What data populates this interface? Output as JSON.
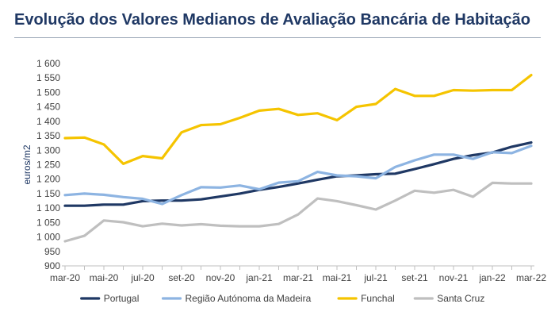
{
  "title": "Evolução dos Valores Medianos de Avaliação Bancária de Habitação",
  "chart_data": {
    "type": "line",
    "title": "Evolução dos Valores Medianos de Avaliação Bancária de Habitação",
    "xlabel": "",
    "ylabel": "euros/m2",
    "ylim": [
      900,
      1600
    ],
    "yticks": [
      900,
      950,
      1000,
      1050,
      1100,
      1150,
      1200,
      1250,
      1300,
      1350,
      1400,
      1450,
      1500,
      1550,
      1600
    ],
    "ytick_labels": [
      "900",
      "950",
      "1 000",
      "1 050",
      "1 100",
      "1 150",
      "1 200",
      "1 250",
      "1 300",
      "1 350",
      "1 400",
      "1 450",
      "1 500",
      "1 550",
      "1 600"
    ],
    "x": [
      "mar-20",
      "abr-20",
      "mai-20",
      "jun-20",
      "jul-20",
      "ago-20",
      "set-20",
      "out-20",
      "nov-20",
      "dez-20",
      "jan-21",
      "fev-21",
      "mar-21",
      "abr-21",
      "mai-21",
      "jun-21",
      "jul-21",
      "ago-21",
      "set-21",
      "out-21",
      "nov-21",
      "dez-21",
      "jan-22",
      "fev-22",
      "mar-22"
    ],
    "xtick_labels": [
      "mar-20",
      "mai-20",
      "jul-20",
      "set-20",
      "nov-20",
      "jan-21",
      "mar-21",
      "mai-21",
      "jul-21",
      "set-21",
      "nov-21",
      "jan-22",
      "mar-22"
    ],
    "grid": false,
    "legend_position": "bottom",
    "series": [
      {
        "name": "Portugal",
        "color": "#1f3864",
        "values": [
          1108,
          1108,
          1112,
          1112,
          1124,
          1126,
          1126,
          1130,
          1140,
          1150,
          1163,
          1173,
          1185,
          1198,
          1210,
          1213,
          1217,
          1219,
          1235,
          1252,
          1270,
          1283,
          1292,
          1312,
          1327
        ]
      },
      {
        "name": "Região Autónoma da Madeira",
        "color": "#8db4e2",
        "values": [
          1145,
          1150,
          1146,
          1138,
          1132,
          1114,
          1145,
          1172,
          1171,
          1178,
          1165,
          1188,
          1193,
          1225,
          1213,
          1210,
          1203,
          1242,
          1265,
          1285,
          1285,
          1270,
          1293,
          1290,
          1315
        ]
      },
      {
        "name": "Funchal",
        "color": "#f5c400",
        "values": [
          1342,
          1344,
          1320,
          1253,
          1280,
          1272,
          1362,
          1387,
          1390,
          1412,
          1437,
          1443,
          1422,
          1428,
          1404,
          1450,
          1460,
          1512,
          1488,
          1488,
          1508,
          1506,
          1508,
          1508,
          1560
        ]
      },
      {
        "name": "Santa Cruz",
        "color": "#bfbfbf",
        "values": [
          985,
          1004,
          1057,
          1051,
          1037,
          1046,
          1040,
          1044,
          1039,
          1037,
          1037,
          1045,
          1078,
          1133,
          1124,
          1110,
          1095,
          1126,
          1160,
          1153,
          1163,
          1139,
          1187,
          1185,
          1185
        ]
      }
    ]
  }
}
